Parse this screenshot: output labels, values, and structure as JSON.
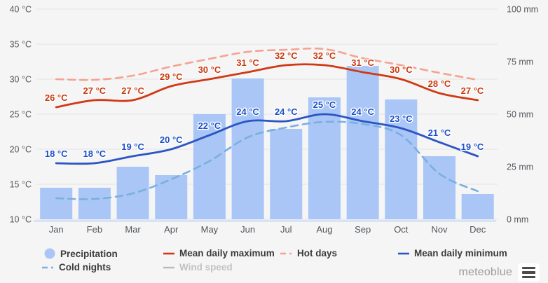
{
  "chart_data": {
    "type": "climate-combo (bar + line)",
    "categories": [
      "Jan",
      "Feb",
      "Mar",
      "Apr",
      "May",
      "Jun",
      "Jul",
      "Aug",
      "Sep",
      "Oct",
      "Nov",
      "Dec"
    ],
    "temp_axis": {
      "side": "left",
      "tick_labels": [
        "40 °C",
        "35 °C",
        "30 °C",
        "25 °C",
        "20 °C",
        "15 °C",
        "10 °C"
      ],
      "tick_values": [
        40,
        35,
        30,
        25,
        20,
        15,
        10
      ],
      "range": [
        10,
        40
      ],
      "grid": true
    },
    "precip_axis": {
      "side": "right",
      "tick_labels": [
        "100 mm",
        "75 mm",
        "50 mm",
        "25 mm",
        "0 mm"
      ],
      "tick_values": [
        100,
        75,
        50,
        25,
        0
      ],
      "range": [
        0,
        100
      ]
    },
    "series": [
      {
        "name": "Precipitation",
        "kind": "bar",
        "unit": "mm",
        "values": [
          15,
          15,
          25,
          21,
          50,
          67,
          43,
          58,
          73,
          57,
          30,
          12
        ],
        "labeled": false
      },
      {
        "name": "Hot days",
        "kind": "dashed-line",
        "unit": "°C-scale (estimated, unlabeled)",
        "values": [
          30.0,
          29.9,
          30.5,
          31.8,
          32.9,
          33.9,
          34.2,
          34.3,
          33.0,
          32.0,
          30.9,
          29.9
        ],
        "labeled": false
      },
      {
        "name": "Mean daily maximum",
        "kind": "line",
        "unit": "°C",
        "values": [
          26,
          27,
          27,
          29,
          30,
          31,
          32,
          32,
          31,
          30,
          28,
          27
        ],
        "labeled": true
      },
      {
        "name": "Cold nights",
        "kind": "dashed-line",
        "unit": "°C-scale (estimated, unlabeled)",
        "values": [
          13.0,
          12.9,
          13.7,
          15.7,
          18.3,
          21.7,
          23.1,
          23.9,
          23.6,
          22.0,
          16.5,
          14.0
        ],
        "labeled": false
      },
      {
        "name": "Mean daily minimum",
        "kind": "line",
        "unit": "°C",
        "values": [
          18,
          18,
          19,
          20,
          22,
          24,
          24,
          25,
          24,
          23,
          21,
          19
        ],
        "labeled": true
      },
      {
        "name": "Wind speed",
        "kind": "line",
        "unit": "",
        "values": null,
        "labeled": false,
        "hidden": true
      }
    ],
    "point_label_suffix": " °C",
    "title": "",
    "legend_position": "bottom"
  },
  "legend": {
    "items": [
      {
        "label": "Precipitation",
        "swatch": "circle",
        "active": true
      },
      {
        "label": "Mean daily maximum",
        "swatch": "solid-line",
        "active": true
      },
      {
        "label": "Hot days",
        "swatch": "dashed-line",
        "active": true
      },
      {
        "label": "Mean daily minimum",
        "swatch": "solid-line",
        "active": true
      },
      {
        "label": "Cold nights",
        "swatch": "dashed-line",
        "active": true
      },
      {
        "label": "Wind speed",
        "swatch": "solid-line",
        "active": false
      }
    ]
  },
  "footer": {
    "brand": "meteoblue"
  },
  "colors": {
    "background": "#f5f5f6",
    "bar": "#a9c6f6",
    "max_line": "#cf3a14",
    "hot_days": "#f5a390",
    "min_line": "#2b55c2",
    "cold_nights": "#7aafe0",
    "wind": "#b9b9b9",
    "grid": "#e3e3e3",
    "axis_baseline": "#c8daf4",
    "max_label_text": "#c93c12",
    "min_label_text": "#1d50c8"
  }
}
